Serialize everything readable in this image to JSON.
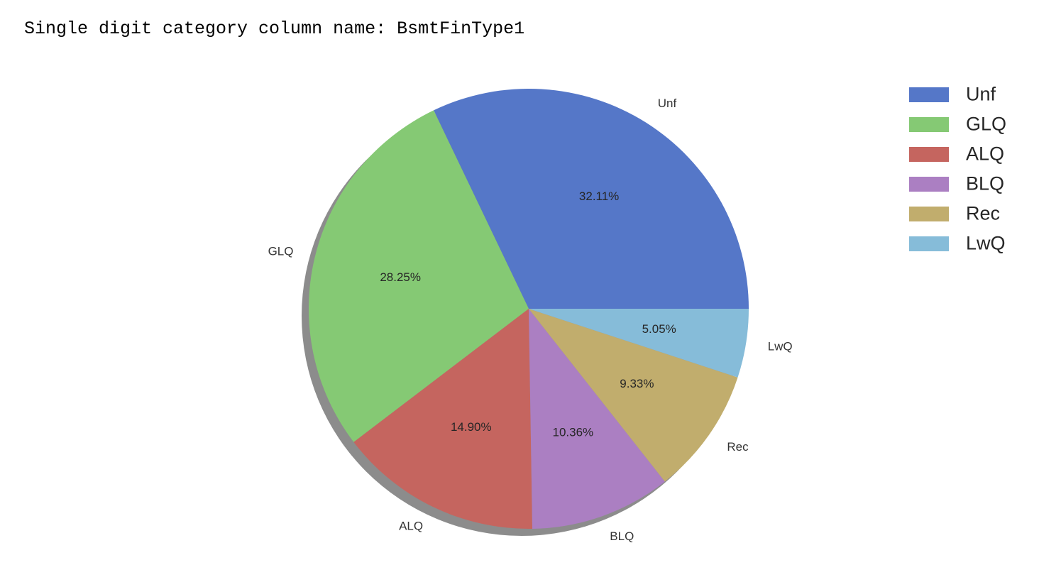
{
  "header": {
    "text": "Single digit category column name: BsmtFinType1"
  },
  "chart_data": {
    "type": "pie",
    "categories": [
      "Unf",
      "GLQ",
      "ALQ",
      "BLQ",
      "Rec",
      "LwQ"
    ],
    "values": [
      32.11,
      28.25,
      14.9,
      10.36,
      9.33,
      5.05
    ],
    "pct_labels": [
      "32.11%",
      "28.25%",
      "14.90%",
      "10.36%",
      "9.33%",
      "5.05%"
    ],
    "colors": [
      "#5577c8",
      "#85c974",
      "#c5655f",
      "#ab7fc2",
      "#c1ad6d",
      "#86bcd9"
    ],
    "shadow": true,
    "start_angle_deg": 0,
    "direction": "counterclockwise",
    "legend": {
      "placement": "upper-right",
      "entries": [
        "Unf",
        "GLQ",
        "ALQ",
        "BLQ",
        "Rec",
        "LwQ"
      ]
    }
  }
}
